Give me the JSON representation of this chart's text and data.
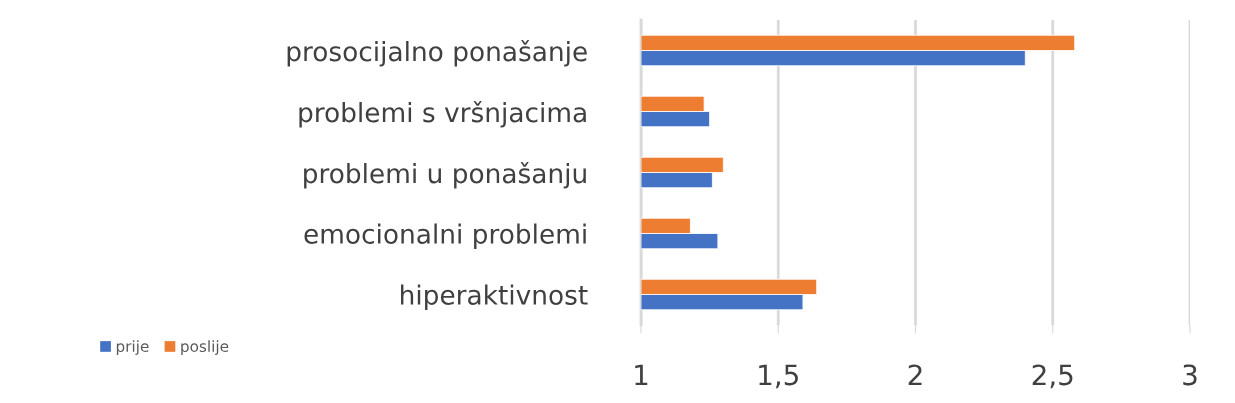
{
  "chart_data": {
    "type": "bar",
    "orientation": "horizontal",
    "categories": [
      "prosocijalno ponašanje",
      "problemi s vršnjacima",
      "problemi u ponašanju",
      "emocionalni problemi",
      "hiperaktivnost"
    ],
    "series": [
      {
        "name": "prije",
        "color": "#4472c4",
        "values": [
          2.4,
          1.25,
          1.26,
          1.28,
          1.59
        ]
      },
      {
        "name": "poslije",
        "color": "#ed7d31",
        "values": [
          2.58,
          1.23,
          1.3,
          1.18,
          1.64
        ]
      }
    ],
    "xlim": [
      1,
      3
    ],
    "xticks": [
      1,
      {
        "value": 1.5,
        "label": "1,5"
      },
      2,
      {
        "value": 2.5,
        "label": "2,5"
      },
      3
    ],
    "grid": "x",
    "legend": "bottom left"
  }
}
